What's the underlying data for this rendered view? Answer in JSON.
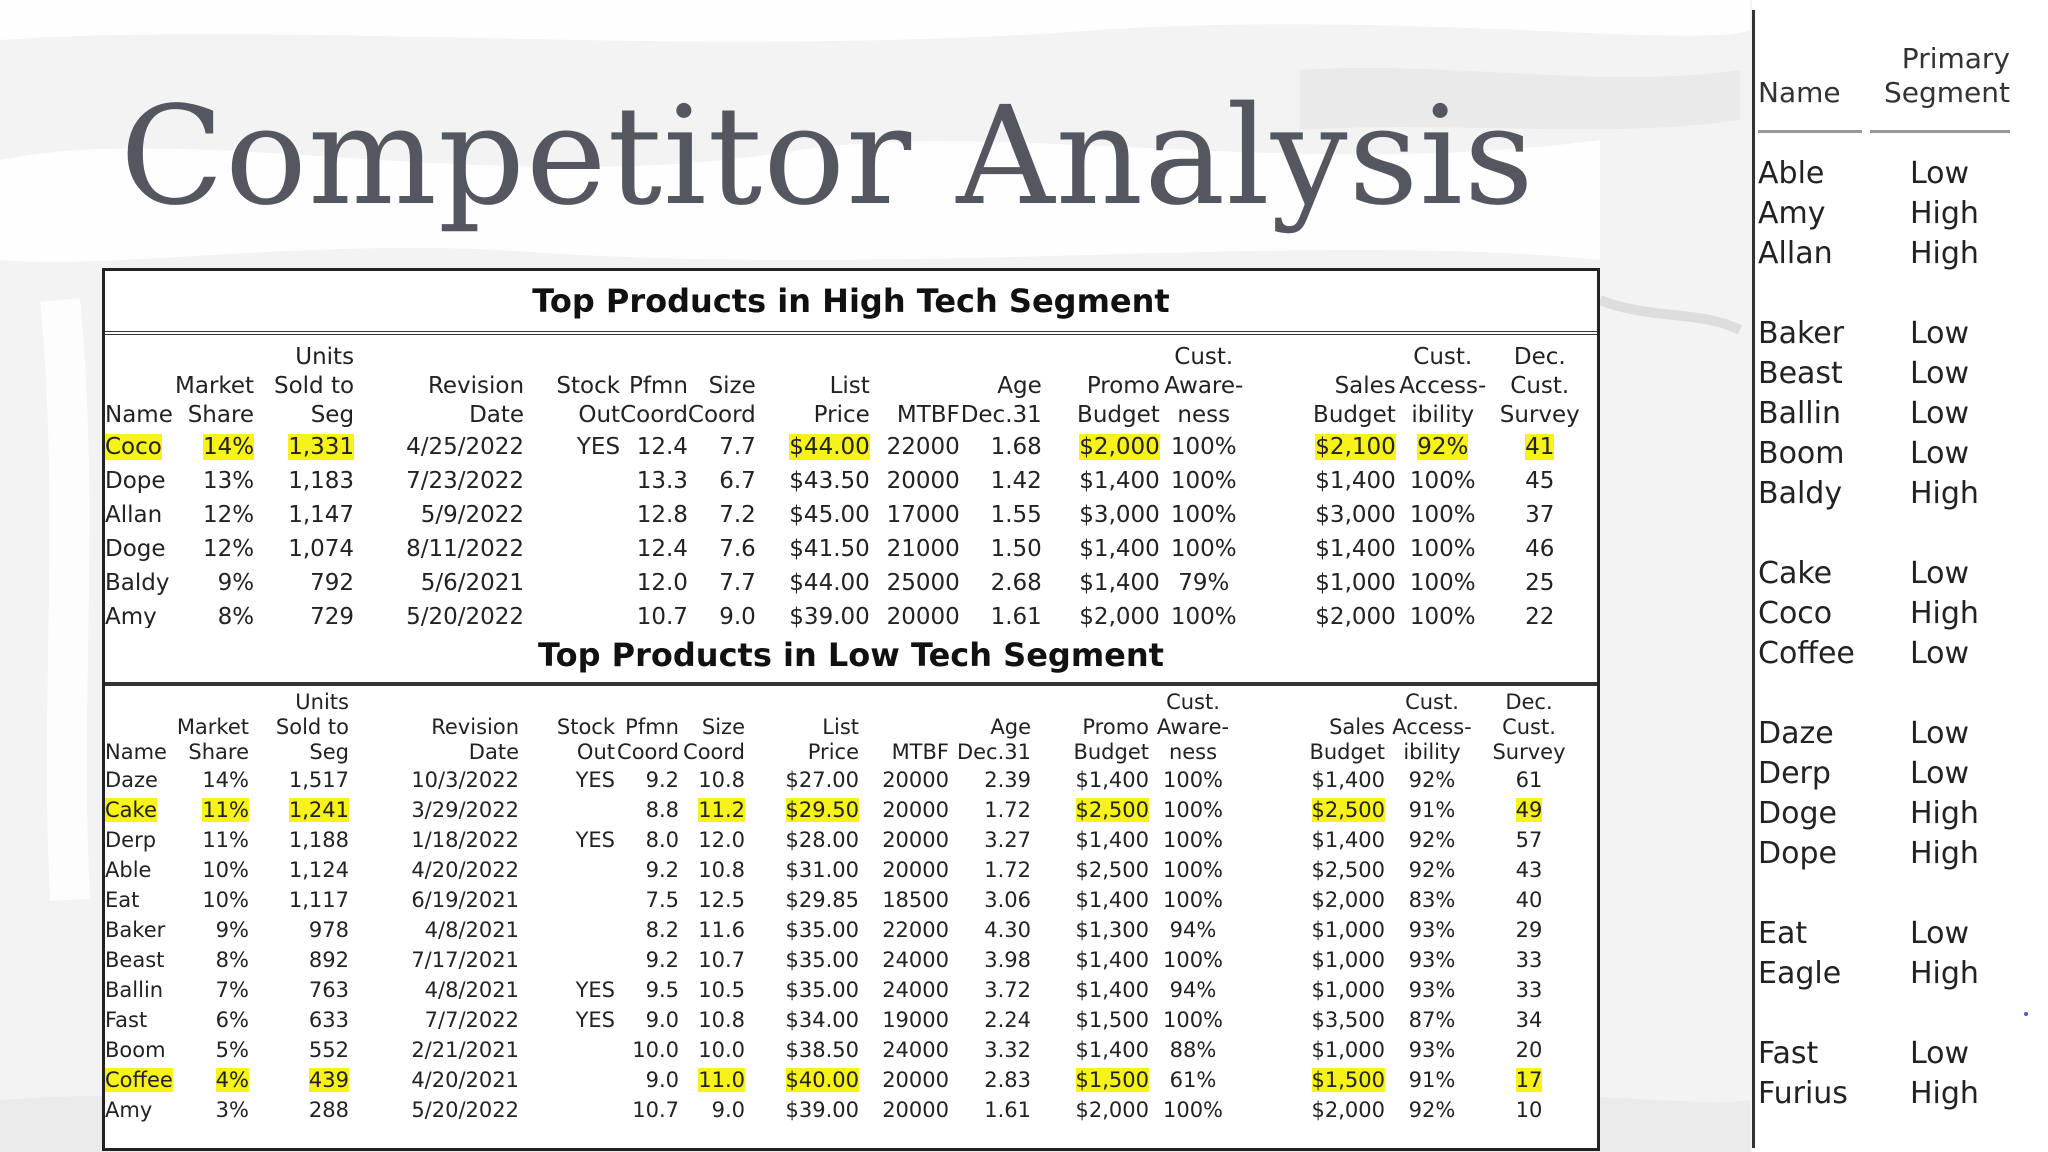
{
  "title": "Competitor Analysis",
  "columns": [
    "Name",
    "Market Share",
    "Units Sold to Seg",
    "Revision Date",
    "Stock Out",
    "Pfmn Coord",
    "Size Coord",
    "List Price",
    "MTBF",
    "Age Dec.31",
    "Promo Budget",
    "Cust. Aware-ness",
    "Sales Budget",
    "Cust. Access-ibility",
    "Dec. Cust. Survey"
  ],
  "high_tech": {
    "title": "Top Products in High Tech Segment",
    "header": {
      "line1": [
        "",
        "",
        "Units",
        "",
        "",
        "",
        "",
        "",
        "",
        "",
        "",
        "Cust.",
        "",
        "Cust.",
        "Dec."
      ],
      "line2": [
        "",
        "Market",
        "Sold to",
        "Revision",
        "Stock",
        "Pfmn",
        "Size",
        "List",
        "",
        "Age",
        "Promo",
        "Aware-",
        "Sales",
        "Access-",
        "Cust."
      ],
      "line3": [
        "Name",
        "Share",
        "Seg",
        "Date",
        "Out",
        "Coord",
        "Coord",
        "Price",
        "MTBF",
        "Dec.31",
        "Budget",
        "ness",
        "Budget",
        "ibility",
        "Survey"
      ]
    },
    "rows": [
      {
        "cells": [
          "Coco",
          "14%",
          "1,331",
          "4/25/2022",
          "YES",
          "12.4",
          "7.7",
          "$44.00",
          "22000",
          "1.68",
          "$2,000",
          "100%",
          "$2,100",
          "92%",
          "41"
        ],
        "highlight": [
          0,
          1,
          2,
          7,
          10,
          12,
          13,
          14
        ]
      },
      {
        "cells": [
          "Dope",
          "13%",
          "1,183",
          "7/23/2022",
          "",
          "13.3",
          "6.7",
          "$43.50",
          "20000",
          "1.42",
          "$1,400",
          "100%",
          "$1,400",
          "100%",
          "45"
        ],
        "highlight": []
      },
      {
        "cells": [
          "Allan",
          "12%",
          "1,147",
          "5/9/2022",
          "",
          "12.8",
          "7.2",
          "$45.00",
          "17000",
          "1.55",
          "$3,000",
          "100%",
          "$3,000",
          "100%",
          "37"
        ],
        "highlight": []
      },
      {
        "cells": [
          "Doge",
          "12%",
          "1,074",
          "8/11/2022",
          "",
          "12.4",
          "7.6",
          "$41.50",
          "21000",
          "1.50",
          "$1,400",
          "100%",
          "$1,400",
          "100%",
          "46"
        ],
        "highlight": []
      },
      {
        "cells": [
          "Baldy",
          "9%",
          "792",
          "5/6/2021",
          "",
          "12.0",
          "7.7",
          "$44.00",
          "25000",
          "2.68",
          "$1,400",
          "79%",
          "$1,000",
          "100%",
          "25"
        ],
        "highlight": []
      },
      {
        "cells": [
          "Amy",
          "8%",
          "729",
          "5/20/2022",
          "",
          "10.7",
          "9.0",
          "$39.00",
          "20000",
          "1.61",
          "$2,000",
          "100%",
          "$2,000",
          "100%",
          "22"
        ],
        "highlight": []
      }
    ]
  },
  "low_tech": {
    "title": "Top Products in Low Tech Segment",
    "header": {
      "line1": [
        "",
        "",
        "Units",
        "",
        "",
        "",
        "",
        "",
        "",
        "",
        "",
        "Cust.",
        "",
        "Cust.",
        "Dec."
      ],
      "line2": [
        "",
        "Market",
        "Sold to",
        "Revision",
        "Stock",
        "Pfmn",
        "Size",
        "List",
        "",
        "Age",
        "Promo",
        "Aware-",
        "Sales",
        "Access-",
        "Cust."
      ],
      "line3": [
        "Name",
        "Share",
        "Seg",
        "Date",
        "Out",
        "Coord",
        "Coord",
        "Price",
        "MTBF",
        "Dec.31",
        "Budget",
        "ness",
        "Budget",
        "ibility",
        "Survey"
      ]
    },
    "rows": [
      {
        "cells": [
          "Daze",
          "14%",
          "1,517",
          "10/3/2022",
          "YES",
          "9.2",
          "10.8",
          "$27.00",
          "20000",
          "2.39",
          "$1,400",
          "100%",
          "$1,400",
          "92%",
          "61"
        ],
        "highlight": []
      },
      {
        "cells": [
          "Cake",
          "11%",
          "1,241",
          "3/29/2022",
          "",
          "8.8",
          "11.2",
          "$29.50",
          "20000",
          "1.72",
          "$2,500",
          "100%",
          "$2,500",
          "91%",
          "49"
        ],
        "highlight": [
          0,
          1,
          2,
          6,
          7,
          10,
          12,
          14
        ]
      },
      {
        "cells": [
          "Derp",
          "11%",
          "1,188",
          "1/18/2022",
          "YES",
          "8.0",
          "12.0",
          "$28.00",
          "20000",
          "3.27",
          "$1,400",
          "100%",
          "$1,400",
          "92%",
          "57"
        ],
        "highlight": []
      },
      {
        "cells": [
          "Able",
          "10%",
          "1,124",
          "4/20/2022",
          "",
          "9.2",
          "10.8",
          "$31.00",
          "20000",
          "1.72",
          "$2,500",
          "100%",
          "$2,500",
          "92%",
          "43"
        ],
        "highlight": []
      },
      {
        "cells": [
          "Eat",
          "10%",
          "1,117",
          "6/19/2021",
          "",
          "7.5",
          "12.5",
          "$29.85",
          "18500",
          "3.06",
          "$1,400",
          "100%",
          "$2,000",
          "83%",
          "40"
        ],
        "highlight": []
      },
      {
        "cells": [
          "Baker",
          "9%",
          "978",
          "4/8/2021",
          "",
          "8.2",
          "11.6",
          "$35.00",
          "22000",
          "4.30",
          "$1,300",
          "94%",
          "$1,000",
          "93%",
          "29"
        ],
        "highlight": []
      },
      {
        "cells": [
          "Beast",
          "8%",
          "892",
          "7/17/2021",
          "",
          "9.2",
          "10.7",
          "$35.00",
          "24000",
          "3.98",
          "$1,400",
          "100%",
          "$1,000",
          "93%",
          "33"
        ],
        "highlight": []
      },
      {
        "cells": [
          "Ballin",
          "7%",
          "763",
          "4/8/2021",
          "YES",
          "9.5",
          "10.5",
          "$35.00",
          "24000",
          "3.72",
          "$1,400",
          "94%",
          "$1,000",
          "93%",
          "33"
        ],
        "highlight": []
      },
      {
        "cells": [
          "Fast",
          "6%",
          "633",
          "7/7/2022",
          "YES",
          "9.0",
          "10.8",
          "$34.00",
          "19000",
          "2.24",
          "$1,500",
          "100%",
          "$3,500",
          "87%",
          "34"
        ],
        "highlight": []
      },
      {
        "cells": [
          "Boom",
          "5%",
          "552",
          "2/21/2021",
          "",
          "10.0",
          "10.0",
          "$38.50",
          "24000",
          "3.32",
          "$1,400",
          "88%",
          "$1,000",
          "93%",
          "20"
        ],
        "highlight": []
      },
      {
        "cells": [
          "Coffee",
          "4%",
          "439",
          "4/20/2021",
          "",
          "9.0",
          "11.0",
          "$40.00",
          "20000",
          "2.83",
          "$1,500",
          "61%",
          "$1,500",
          "91%",
          "17"
        ],
        "highlight": [
          0,
          1,
          2,
          6,
          7,
          10,
          12,
          14
        ]
      },
      {
        "cells": [
          "Amy",
          "3%",
          "288",
          "5/20/2022",
          "",
          "10.7",
          "9.0",
          "$39.00",
          "20000",
          "1.61",
          "$2,000",
          "100%",
          "$2,000",
          "92%",
          "10"
        ],
        "highlight": []
      }
    ]
  },
  "segments_panel": {
    "header_name": "Name",
    "header_segment_line1": "Primary",
    "header_segment_line2": "Segment",
    "groups": [
      [
        {
          "name": "Able",
          "segment": "Low"
        },
        {
          "name": "Amy",
          "segment": "High"
        },
        {
          "name": "Allan",
          "segment": "High"
        }
      ],
      [
        {
          "name": "Baker",
          "segment": "Low"
        },
        {
          "name": "Beast",
          "segment": "Low"
        },
        {
          "name": "Ballin",
          "segment": "Low"
        },
        {
          "name": "Boom",
          "segment": "Low"
        },
        {
          "name": "Baldy",
          "segment": "High"
        }
      ],
      [
        {
          "name": "Cake",
          "segment": "Low"
        },
        {
          "name": "Coco",
          "segment": "High"
        },
        {
          "name": "Coffee",
          "segment": "Low"
        }
      ],
      [
        {
          "name": "Daze",
          "segment": "Low"
        },
        {
          "name": "Derp",
          "segment": "Low"
        },
        {
          "name": "Doge",
          "segment": "High"
        },
        {
          "name": "Dope",
          "segment": "High"
        }
      ],
      [
        {
          "name": "Eat",
          "segment": "Low"
        },
        {
          "name": "Eagle",
          "segment": "High"
        }
      ],
      [
        {
          "name": "Fast",
          "segment": "Low"
        },
        {
          "name": "Furius",
          "segment": "High"
        }
      ]
    ]
  },
  "colors": {
    "highlight": "#f6f21a",
    "title": "#555760",
    "border": "#222222"
  }
}
